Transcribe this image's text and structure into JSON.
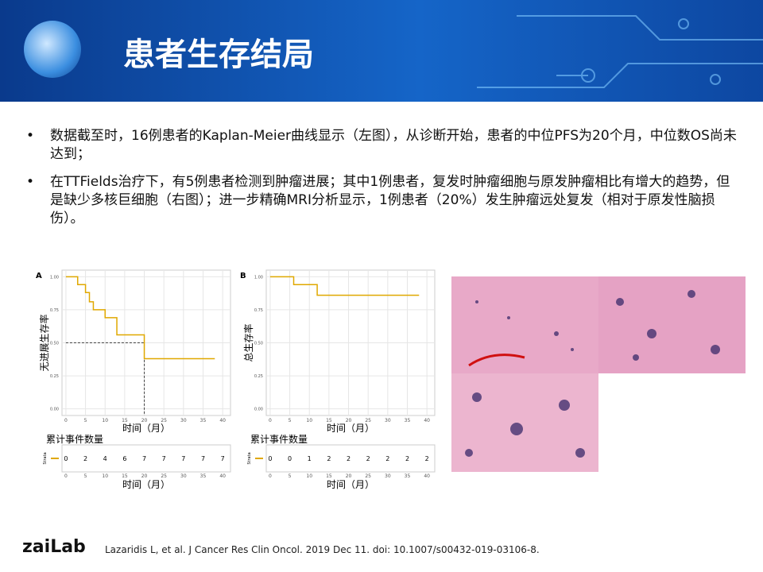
{
  "header": {
    "title": "患者生存结局"
  },
  "bullets": [
    "数据截至时，16例患者的Kaplan-Meier曲线显示（左图），从诊断开始，患者的中位PFS为20个月，中位数OS尚未达到；",
    "在TTFields治疗下，有5例患者检测到肿瘤进展；其中1例患者，复发时肿瘤细胞与原发肿瘤相比有增大的趋势，但是缺少多核巨细胞（右图）；进一步精确MRI分析显示，1例患者（20%）发生肿瘤远处复发（相对于原发性脑损伤）。"
  ],
  "chart_data": [
    {
      "type": "line",
      "step": true,
      "panel": "A",
      "ylabel": "无进展生存率",
      "xlabel": "时间（月）",
      "color": "#e0a800",
      "x": [
        0,
        3,
        5,
        6,
        7,
        10,
        13,
        20,
        38
      ],
      "values": [
        1,
        0.94,
        0.88,
        0.81,
        0.75,
        0.69,
        0.56,
        0.38,
        0.38
      ],
      "median": {
        "x": 20,
        "y": 0.5
      },
      "xlim": [
        -1,
        42
      ],
      "ylim": [
        -0.05,
        1.05
      ],
      "xticks": [
        0,
        5,
        10,
        15,
        20,
        25,
        30,
        35,
        40
      ],
      "yticks": [
        {
          "value": 0,
          "label": "0.00"
        },
        {
          "value": 0.25,
          "label": "0.25"
        },
        {
          "value": 0.5,
          "label": "0.50"
        },
        {
          "value": 0.75,
          "label": "0.75"
        },
        {
          "value": 1,
          "label": "1.00"
        }
      ],
      "risk_table": {
        "title": "累计事件数量",
        "label": "Strata",
        "values": [
          0,
          2,
          4,
          6,
          7,
          7,
          7,
          7,
          7
        ]
      }
    },
    {
      "type": "line",
      "step": true,
      "panel": "B",
      "ylabel": "总生存率",
      "xlabel": "时间（月）",
      "color": "#e0a800",
      "x": [
        0,
        6,
        12,
        38
      ],
      "values": [
        1,
        0.94,
        0.86,
        0.86
      ],
      "xlim": [
        -1,
        42
      ],
      "ylim": [
        -0.05,
        1.05
      ],
      "xticks": [
        0,
        5,
        10,
        15,
        20,
        25,
        30,
        35,
        40
      ],
      "yticks": [
        {
          "value": 0,
          "label": "0.00"
        },
        {
          "value": 0.25,
          "label": "0.25"
        },
        {
          "value": 0.5,
          "label": "0.50"
        },
        {
          "value": 0.75,
          "label": "0.75"
        },
        {
          "value": 1,
          "label": "1.00"
        }
      ],
      "risk_table": {
        "title": "累计事件数量",
        "label": "Strata",
        "values": [
          0,
          0,
          1,
          2,
          2,
          2,
          2,
          2,
          2
        ]
      }
    }
  ],
  "footer": {
    "logo": "zaiLab",
    "citation": "Lazaridis L, et al. J Cancer Res Clin Oncol. 2019 Dec 11. doi: 10.1007/s00432-019-03106-8."
  }
}
